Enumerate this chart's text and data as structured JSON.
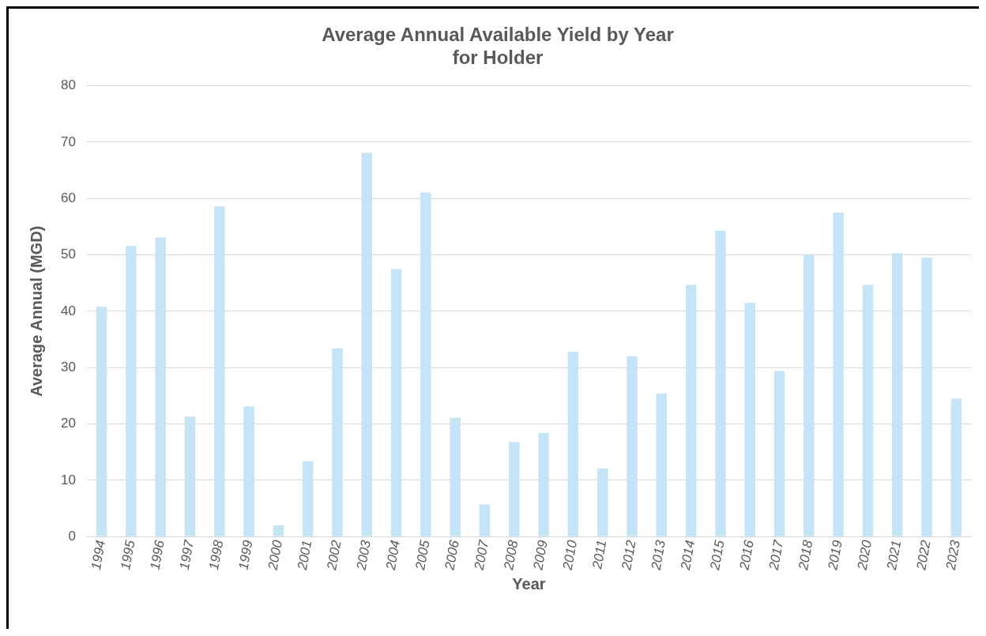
{
  "chart_data": {
    "type": "bar",
    "title": "Average Annual Available Yield by Year\nfor Holder",
    "xlabel": "Year",
    "ylabel": "Average Annual (MGD)",
    "categories": [
      "1994",
      "1995",
      "1996",
      "1997",
      "1998",
      "1999",
      "2000",
      "2001",
      "2002",
      "2003",
      "2004",
      "2005",
      "2006",
      "2007",
      "2008",
      "2009",
      "2010",
      "2011",
      "2012",
      "2013",
      "2014",
      "2015",
      "2016",
      "2017",
      "2018",
      "2019",
      "2020",
      "2021",
      "2022",
      "2023"
    ],
    "values": [
      40.8,
      51.6,
      53.1,
      21.3,
      58.6,
      23.1,
      2.0,
      13.4,
      33.4,
      68.1,
      47.5,
      61.1,
      21.1,
      5.7,
      16.8,
      18.4,
      32.8,
      12.1,
      32.0,
      25.4,
      44.7,
      54.3,
      41.5,
      29.4,
      50.1,
      57.5,
      44.7,
      50.3,
      49.5,
      24.5
    ],
    "color": "#c5e4f5",
    "ylim": [
      0,
      80
    ],
    "yticks": [
      0,
      10,
      20,
      30,
      40,
      50,
      60,
      70,
      80
    ],
    "grid": "y",
    "legend": false
  }
}
